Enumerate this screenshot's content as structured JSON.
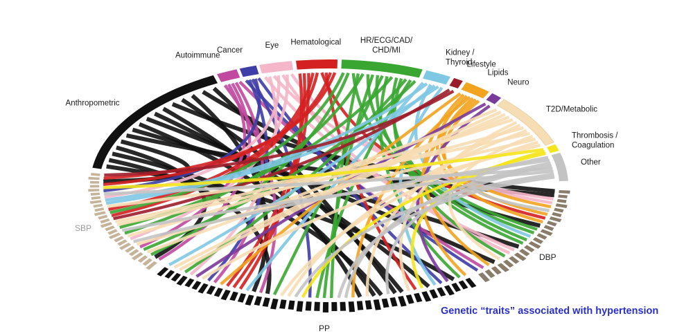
{
  "caption": {
    "text": "Genetic “traits” associated with hypertension",
    "color": "#2a2fc8"
  },
  "trait_categories": [
    {
      "name": "Anthropometric",
      "lines": [
        "Anthropometric"
      ],
      "color": "#111111"
    },
    {
      "name": "Autoimmune",
      "lines": [
        "Autoimmune"
      ],
      "color": "#c04aa0"
    },
    {
      "name": "Cancer",
      "lines": [
        "Cancer"
      ],
      "color": "#3f3da6"
    },
    {
      "name": "Eye",
      "lines": [
        "Eye"
      ],
      "color": "#f4b6c8"
    },
    {
      "name": "Hematological",
      "lines": [
        "Hematological"
      ],
      "color": "#d42020"
    },
    {
      "name": "HR/ECG/CAD/CHD/MI",
      "lines": [
        "HR/ECG/CAD/",
        "CHD/MI"
      ],
      "color": "#3aa632"
    },
    {
      "name": "Kidney/Thyroid",
      "lines": [
        "Kidney /",
        "Thyroid"
      ],
      "color": "#7ec8e3"
    },
    {
      "name": "Lifestyle",
      "lines": [
        "Lifestyle"
      ],
      "color": "#9c1d2a"
    },
    {
      "name": "Lipids",
      "lines": [
        "Lipids"
      ],
      "color": "#f2a31f"
    },
    {
      "name": "Neuro",
      "lines": [
        "Neuro"
      ],
      "color": "#7a3a9a"
    },
    {
      "name": "T2D/Metabolic",
      "lines": [
        "T2D/Metabolic"
      ],
      "color": "#f7ddb4"
    },
    {
      "name": "Thrombosis/Coagulation",
      "lines": [
        "Thrombosis /",
        "Coagulation"
      ],
      "color": "#f5e51c"
    },
    {
      "name": "Other",
      "lines": [
        "Other"
      ],
      "color": "#c3c3c3"
    }
  ],
  "blood_pressure_traits": [
    {
      "name": "SBP",
      "color": "#c5b49a",
      "label_color": "#9a9a9a"
    },
    {
      "name": "PP",
      "color": "#111111",
      "label_color": "#222222"
    },
    {
      "name": "DBP",
      "color": "#8a7c6a",
      "label_color": "#222222"
    }
  ]
}
